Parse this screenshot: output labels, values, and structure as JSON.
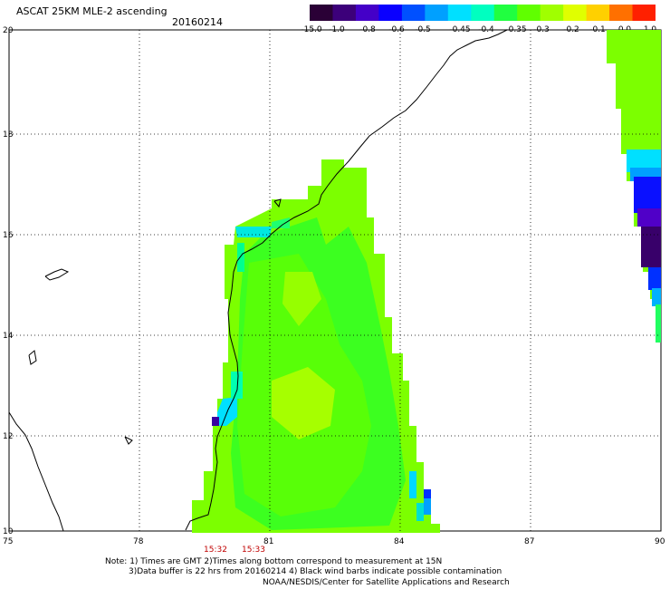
{
  "header": {
    "title": "ASCAT 25KM MLE-2 ascending",
    "date": "20160214"
  },
  "colorbar": {
    "labels": [
      "-15.0",
      "-1.0",
      "-0.8",
      "-0.6",
      "-0.5",
      "-0.45",
      "-0.4",
      "-0.35",
      "-0.3",
      "-0.2",
      "-0.1",
      "0.0",
      "1.0"
    ],
    "colors": [
      "#2a0036",
      "#3c007a",
      "#4400c8",
      "#0a00ff",
      "#0050ff",
      "#00a0ff",
      "#00e0ff",
      "#00ffc0",
      "#20ff40",
      "#60ff00",
      "#a0ff00",
      "#e0ff00",
      "#ffd000",
      "#ff7000",
      "#ff2000"
    ]
  },
  "axes": {
    "lat_labels": [
      "20",
      "18",
      "16",
      "14",
      "12",
      "10"
    ],
    "lon_labels": [
      "75",
      "78",
      "81",
      "84",
      "87",
      "90"
    ]
  },
  "times": [
    "15:32",
    "15:33"
  ],
  "notes": {
    "line1": "Note: 1) Times are GMT 2)Times along bottom correspond to measurement at 15N",
    "line2": "3)Data buffer is 22 hrs from 20160214 4) Black wind barbs indicate possible contamination",
    "credit": "NOAA/NESDIS/Center for Satellite Applications and Research"
  }
}
